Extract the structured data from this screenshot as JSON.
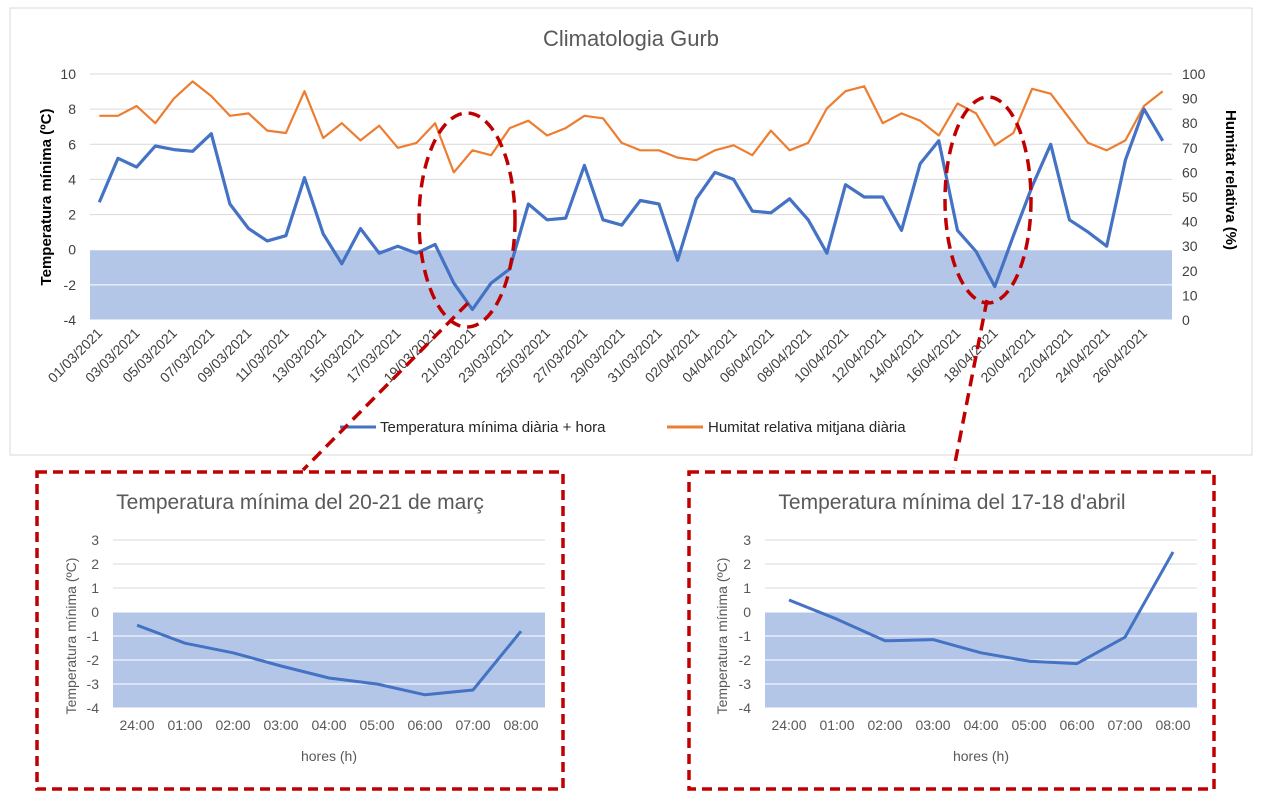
{
  "colors": {
    "temperature": "#4472c4",
    "humidity": "#ed7d31",
    "below_zero_fill": "#b4c6e7",
    "gridline": "#d9d9d9",
    "highlight": "#c00000",
    "frame": "#d9d9d9"
  },
  "chart_data": [
    {
      "type": "line",
      "title": "Climatologia Gurb",
      "ylabel": "Temperatura mínima (ºC)",
      "y2label": "Humitat relativa (%)",
      "xlabel": "",
      "ylim": [
        -4,
        10
      ],
      "y2lim": [
        0,
        100
      ],
      "yticks": [
        -4,
        -2,
        0,
        2,
        4,
        6,
        8,
        10
      ],
      "y2ticks": [
        0,
        10,
        20,
        30,
        40,
        50,
        60,
        70,
        80,
        90,
        100
      ],
      "grid": true,
      "shaded_band": {
        "from": -4,
        "to": 0
      },
      "legend_position": "bottom",
      "x_tick_labels": [
        "01/03/2021",
        "03/03/2021",
        "05/03/2021",
        "07/03/2021",
        "09/03/2021",
        "11/03/2021",
        "13/03/2021",
        "15/03/2021",
        "17/03/2021",
        "19/03/2021",
        "21/03/2021",
        "23/03/2021",
        "25/03/2021",
        "27/03/2021",
        "29/03/2021",
        "31/03/2021",
        "02/04/2021",
        "04/04/2021",
        "06/04/2021",
        "08/04/2021",
        "10/04/2021",
        "12/04/2021",
        "14/04/2021",
        "16/04/2021",
        "18/04/2021",
        "20/04/2021",
        "22/04/2021",
        "24/04/2021",
        "26/04/2021"
      ],
      "x": [
        "01/03/2021",
        "02/03/2021",
        "03/03/2021",
        "04/03/2021",
        "05/03/2021",
        "06/03/2021",
        "07/03/2021",
        "08/03/2021",
        "09/03/2021",
        "10/03/2021",
        "11/03/2021",
        "12/03/2021",
        "13/03/2021",
        "14/03/2021",
        "15/03/2021",
        "16/03/2021",
        "17/03/2021",
        "18/03/2021",
        "19/03/2021",
        "20/03/2021",
        "21/03/2021",
        "22/03/2021",
        "23/03/2021",
        "24/03/2021",
        "25/03/2021",
        "26/03/2021",
        "27/03/2021",
        "28/03/2021",
        "29/03/2021",
        "30/03/2021",
        "31/03/2021",
        "01/04/2021",
        "02/04/2021",
        "03/04/2021",
        "04/04/2021",
        "05/04/2021",
        "06/04/2021",
        "07/04/2021",
        "08/04/2021",
        "09/04/2021",
        "10/04/2021",
        "11/04/2021",
        "12/04/2021",
        "13/04/2021",
        "14/04/2021",
        "15/04/2021",
        "16/04/2021",
        "17/04/2021",
        "18/04/2021",
        "19/04/2021",
        "20/04/2021",
        "21/04/2021",
        "22/04/2021",
        "23/04/2021",
        "24/04/2021",
        "25/04/2021",
        "26/04/2021",
        "27/04/2021"
      ],
      "series": [
        {
          "name": "Temperatura mínima diària + hora",
          "axis": "left",
          "values": [
            2.7,
            5.2,
            4.7,
            5.9,
            5.7,
            5.6,
            6.6,
            2.6,
            1.2,
            0.5,
            0.8,
            4.1,
            0.9,
            -0.8,
            1.2,
            -0.2,
            0.2,
            -0.2,
            0.3,
            -1.9,
            -3.4,
            -1.9,
            -1.1,
            2.6,
            1.7,
            1.8,
            4.8,
            1.7,
            1.4,
            2.8,
            2.6,
            -0.6,
            2.9,
            4.4,
            4.0,
            2.2,
            2.1,
            2.9,
            1.7,
            -0.2,
            3.7,
            3.0,
            3.0,
            1.1,
            4.9,
            6.2,
            1.1,
            -0.1,
            -2.1,
            0.8,
            3.6,
            6.0,
            1.7,
            1.0,
            0.2,
            5.1,
            8.0,
            6.2
          ]
        },
        {
          "name": "Humitat relativa mitjana diària",
          "axis": "right",
          "values": [
            83,
            83,
            87,
            80,
            90,
            97,
            91,
            83,
            84,
            77,
            76,
            93,
            74,
            80,
            73,
            79,
            70,
            72,
            80,
            60,
            69,
            67,
            78,
            81,
            75,
            78,
            83,
            82,
            72,
            69,
            69,
            66,
            65,
            69,
            71,
            67,
            77,
            69,
            72,
            86,
            93,
            95,
            80,
            84,
            81,
            75,
            88,
            84,
            71,
            76,
            94,
            92,
            82,
            72,
            69,
            73,
            87,
            93
          ]
        }
      ],
      "annotations": [
        "highlight: 19/03–22/03",
        "highlight: 16/04–19/04"
      ]
    },
    {
      "type": "line",
      "title": "Temperatura  mínima del 20-21 de març",
      "xlabel": "hores (h)",
      "ylabel": "Temperatura mínima (ºC)",
      "ylim": [
        -4,
        3
      ],
      "yticks": [
        -4,
        -3,
        -2,
        -1,
        0,
        1,
        2,
        3
      ],
      "grid": true,
      "shaded_band": {
        "from": -4,
        "to": 0
      },
      "categories": [
        "24:00",
        "01:00",
        "02:00",
        "03:00",
        "04:00",
        "05:00",
        "06:00",
        "07:00",
        "08:00"
      ],
      "series": [
        {
          "values": [
            -0.55,
            -1.3,
            -1.7,
            -2.25,
            -2.75,
            -3.0,
            -3.45,
            -3.25,
            -0.8
          ]
        }
      ]
    },
    {
      "type": "line",
      "title": "Temperatura  mínima del 17-18 d'abril",
      "xlabel": "hores (h)",
      "ylabel": "Temperatura mínima (ºC)",
      "ylim": [
        -4,
        3
      ],
      "yticks": [
        -4,
        -3,
        -2,
        -1,
        0,
        1,
        2,
        3
      ],
      "grid": true,
      "shaded_band": {
        "from": -4,
        "to": 0
      },
      "categories": [
        "24:00",
        "01:00",
        "02:00",
        "03:00",
        "04:00",
        "05:00",
        "06:00",
        "07:00",
        "08:00"
      ],
      "series": [
        {
          "values": [
            0.5,
            -0.3,
            -1.2,
            -1.15,
            -1.7,
            -2.05,
            -2.15,
            -1.05,
            2.5
          ]
        }
      ]
    }
  ]
}
